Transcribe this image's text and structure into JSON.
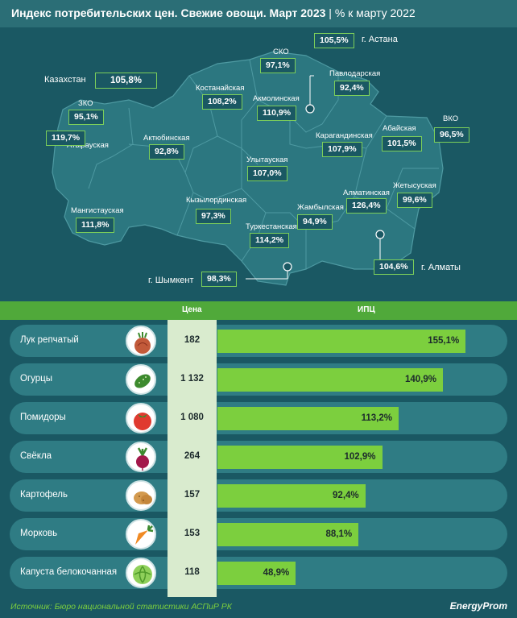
{
  "header": {
    "title": "Индекс потребительских цен. Свежие овощи. Март 2023",
    "subtitle": "| % к марту 2022"
  },
  "map": {
    "country": {
      "label": "Казахстан",
      "value": "105,8%"
    },
    "regions": [
      {
        "name": "ЗКО",
        "value": "95,1%"
      },
      {
        "name": "Атырауская",
        "value": "119,7%"
      },
      {
        "name": "Мангистауская",
        "value": "111,8%"
      },
      {
        "name": "Актюбинская",
        "value": "92,8%"
      },
      {
        "name": "Костанайская",
        "value": "108,2%"
      },
      {
        "name": "СКО",
        "value": "97,1%"
      },
      {
        "name": "Акмолинская",
        "value": "110,9%"
      },
      {
        "name": "Павлодарская",
        "value": "92,4%"
      },
      {
        "name": "Карагандинская",
        "value": "107,9%"
      },
      {
        "name": "Улытауская",
        "value": "107,0%"
      },
      {
        "name": "Кызылординская",
        "value": "97,3%"
      },
      {
        "name": "Туркестанская",
        "value": "114,2%"
      },
      {
        "name": "Жамбылская",
        "value": "94,9%"
      },
      {
        "name": "Алматинская",
        "value": "126,4%"
      },
      {
        "name": "Абайская",
        "value": "101,5%"
      },
      {
        "name": "ВКО",
        "value": "96,5%"
      },
      {
        "name": "Жетысуская",
        "value": "99,6%"
      }
    ],
    "cities": [
      {
        "name": "г. Астана",
        "value": "105,5%"
      },
      {
        "name": "г. Алматы",
        "value": "104,6%"
      },
      {
        "name": "г. Шымкент",
        "value": "98,3%"
      }
    ]
  },
  "table": {
    "col_price": "Цена",
    "col_index": "ИПЦ"
  },
  "chart_data": {
    "type": "bar",
    "orientation": "horizontal",
    "categories": [
      "Лук репчатый",
      "Огурцы",
      "Помидоры",
      "Свёкла",
      "Картофель",
      "Морковь",
      "Капуста белокочанная"
    ],
    "prices": [
      "182",
      "1 132",
      "1 080",
      "264",
      "157",
      "153",
      "118"
    ],
    "values": [
      155.1,
      140.9,
      113.2,
      102.9,
      92.4,
      88.1,
      48.9
    ],
    "value_labels": [
      "155,1%",
      "140,9%",
      "113,2%",
      "102,9%",
      "92,4%",
      "88,1%",
      "48,9%"
    ],
    "icons": [
      "onion-icon",
      "cucumber-icon",
      "tomato-icon",
      "beet-icon",
      "potato-icon",
      "carrot-icon",
      "cabbage-icon"
    ],
    "bar_color": "#7ccf3e"
  },
  "footer": {
    "source": "Источник: Бюро национальной статистики АСПиР РК",
    "brand": "EnergyProm"
  },
  "colors": {
    "background": "#1a5863",
    "accent": "#7ccf3e",
    "row": "#2f7c84"
  }
}
